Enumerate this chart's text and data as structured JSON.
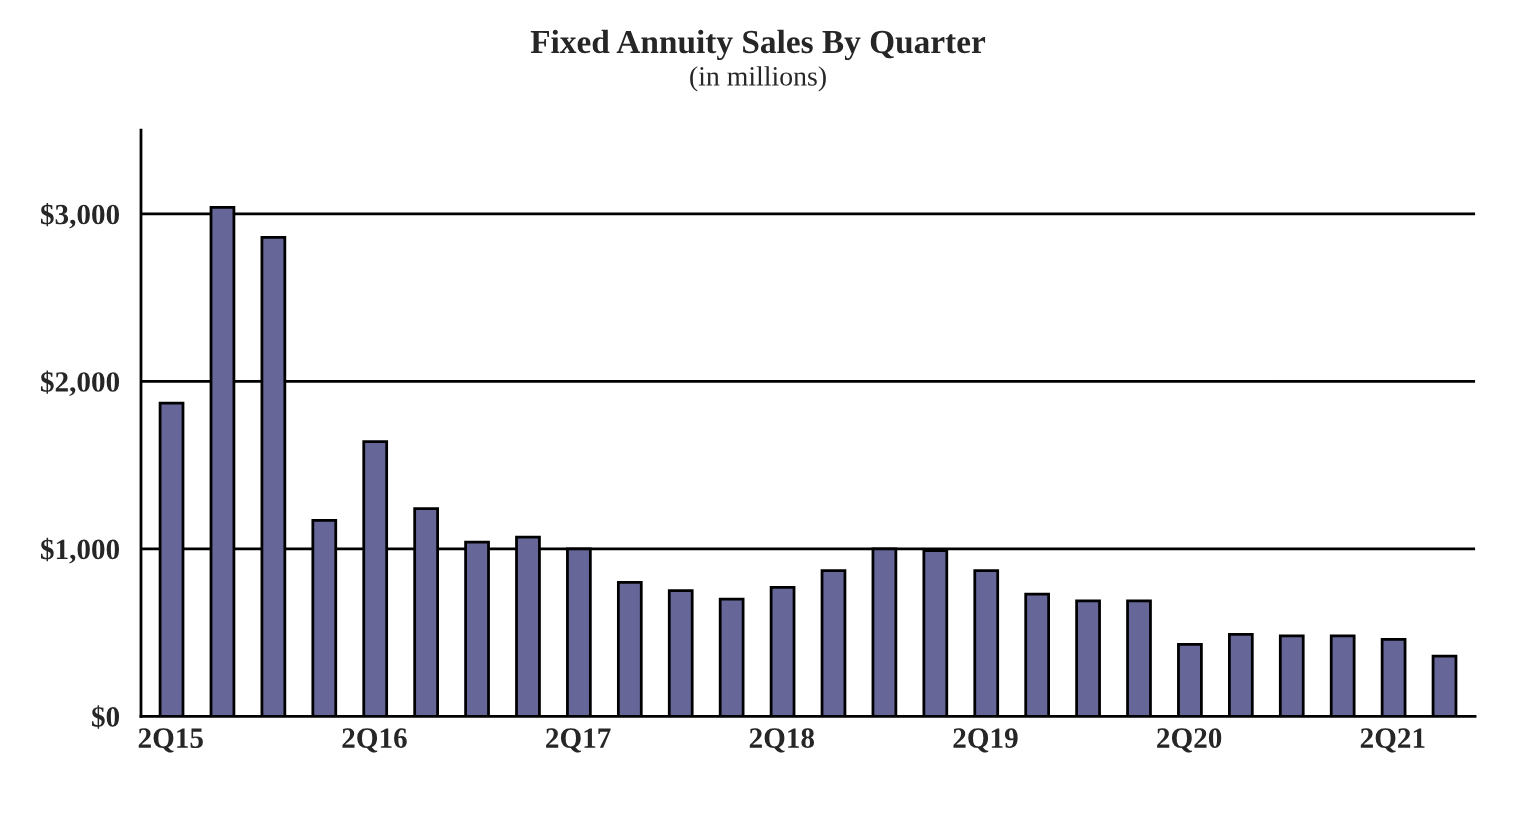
{
  "chart_data": {
    "type": "bar",
    "title": "Fixed Annuity Sales By Quarter",
    "subtitle": "(in millions)",
    "categories": [
      "2Q15",
      null,
      null,
      null,
      "2Q16",
      null,
      null,
      null,
      "2Q17",
      null,
      null,
      null,
      "2Q18",
      null,
      null,
      null,
      "2Q19",
      null,
      null,
      null,
      "2Q20",
      null,
      null,
      null,
      "2Q21",
      null
    ],
    "values": [
      1870,
      3040,
      2860,
      1170,
      1640,
      1240,
      1040,
      1070,
      1000,
      800,
      750,
      700,
      770,
      870,
      1000,
      990,
      870,
      730,
      690,
      690,
      430,
      490,
      480,
      480,
      460,
      360
    ],
    "color": "#666699",
    "ylim": [
      0,
      3500
    ],
    "yticks": [
      {
        "value": 0,
        "label": "$0"
      },
      {
        "value": 1000,
        "label": "$1,000"
      },
      {
        "value": 2000,
        "label": "$2,000"
      },
      {
        "value": 3000,
        "label": "$3,000"
      }
    ],
    "grid": "y",
    "legend": false
  }
}
